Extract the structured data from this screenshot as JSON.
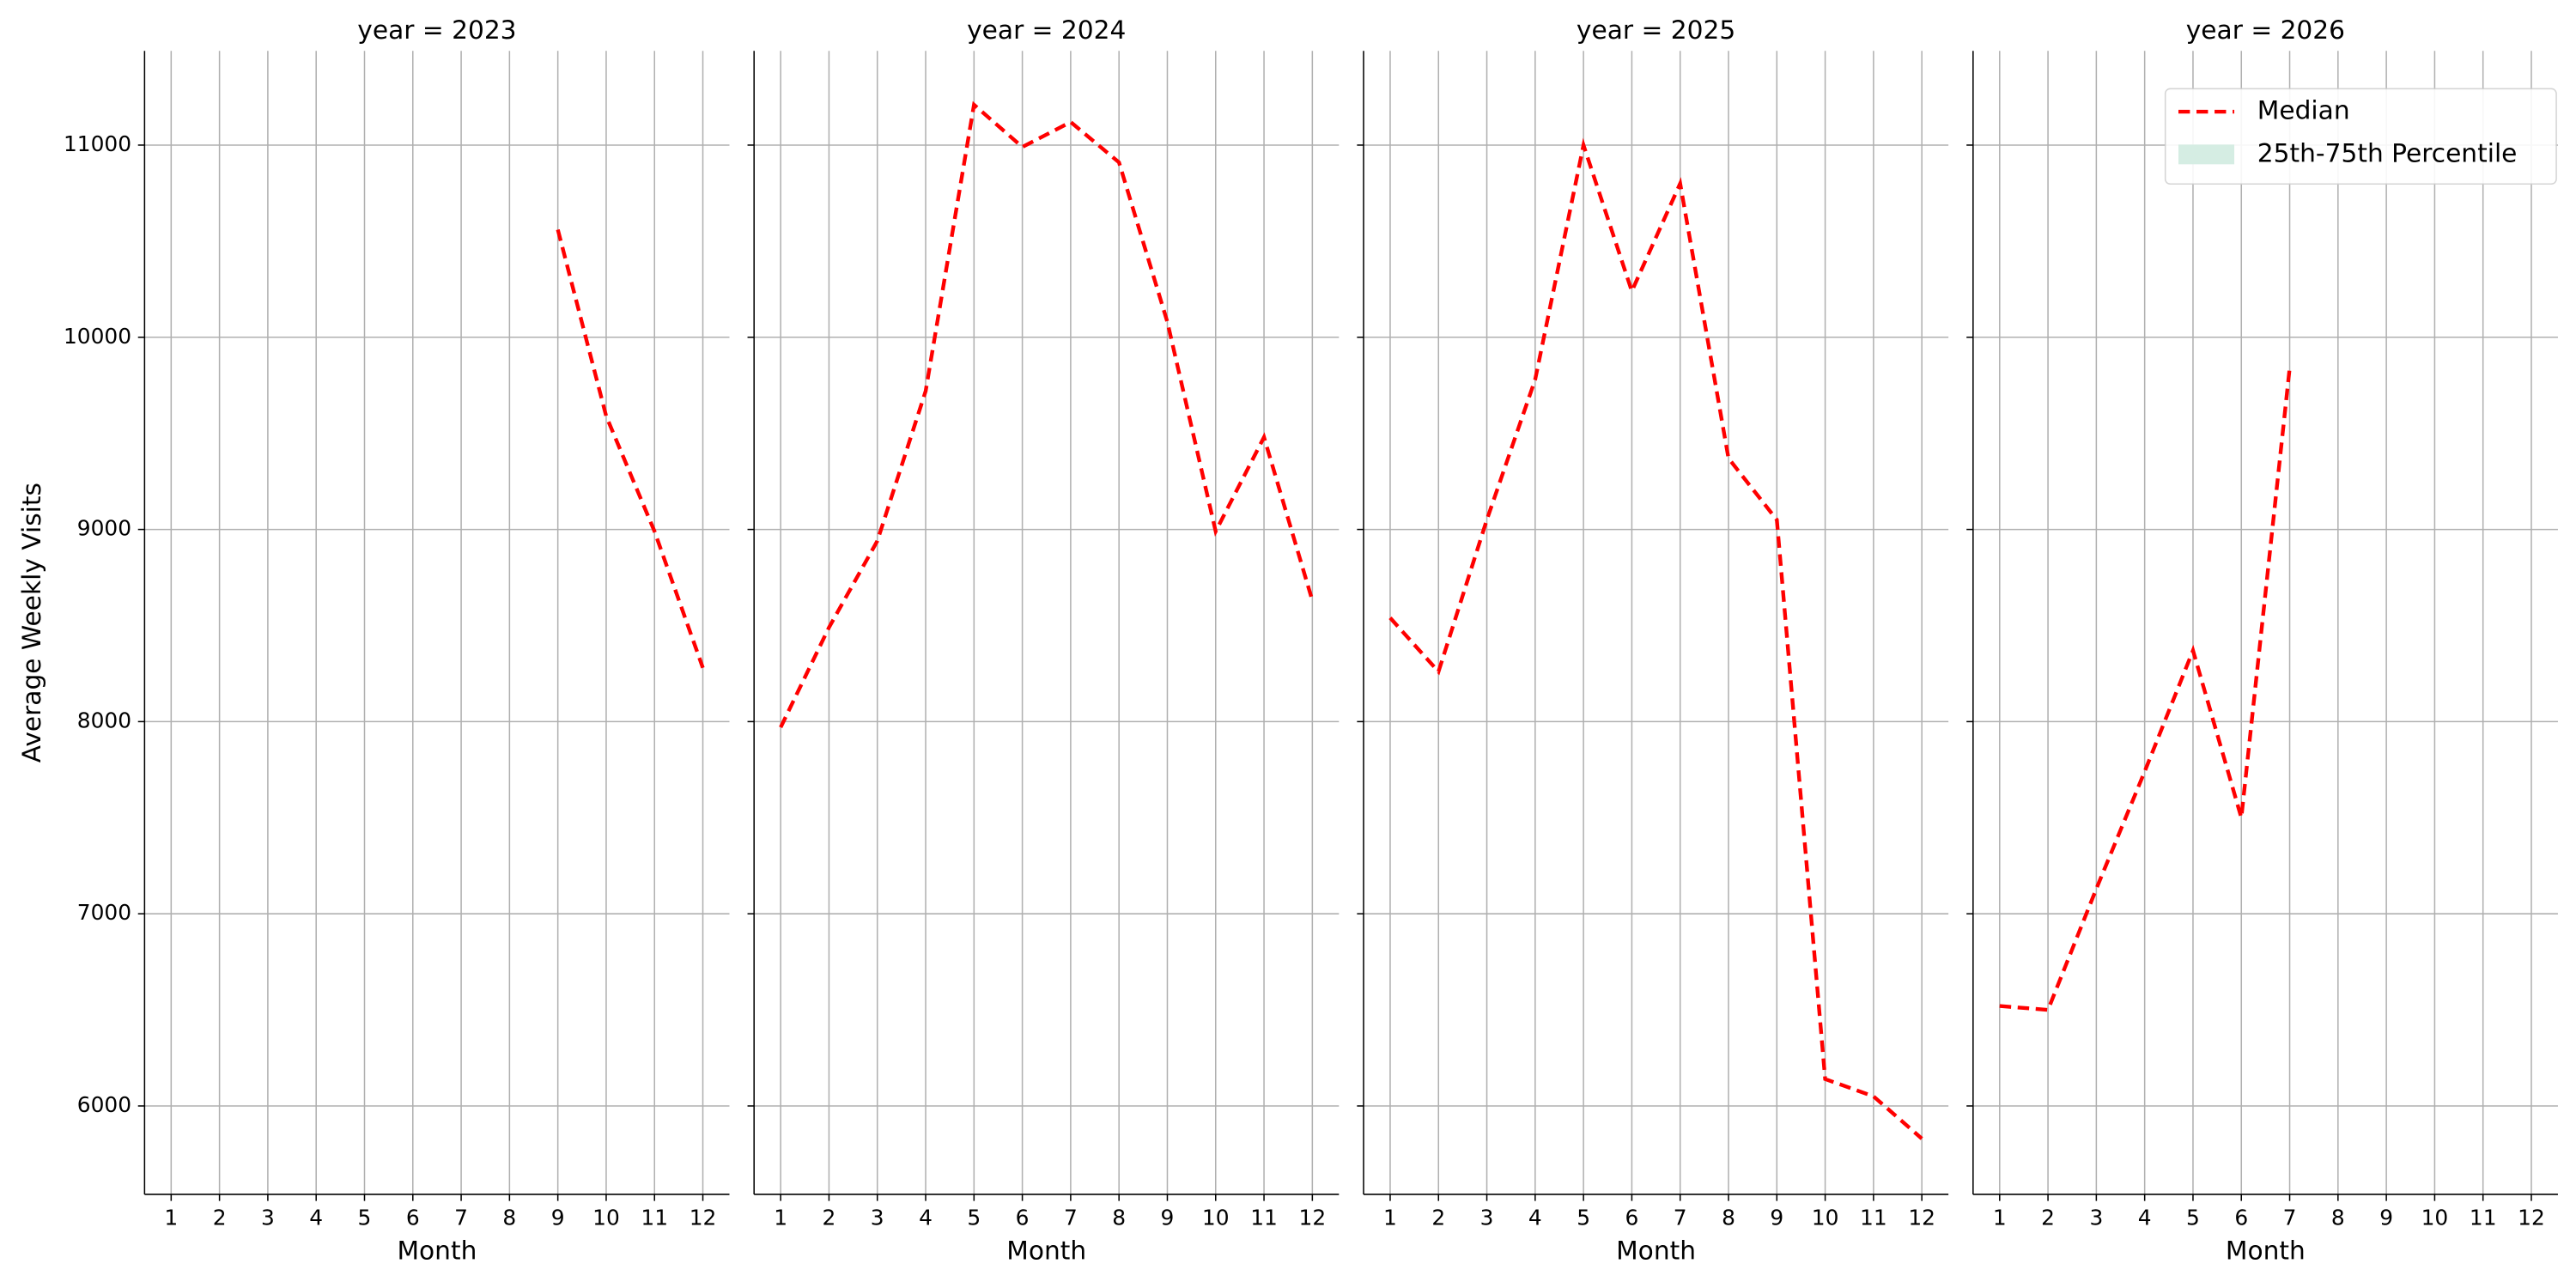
{
  "chart_data": [
    {
      "type": "line",
      "title": "year = 2023",
      "xlabel": "Month",
      "ylabel": "Average Weekly Visits",
      "x": [
        1,
        2,
        3,
        4,
        5,
        6,
        7,
        8,
        9,
        10,
        11,
        12
      ],
      "xlim": [
        0.45,
        12.55
      ],
      "xticks": [
        1,
        2,
        3,
        4,
        5,
        6,
        7,
        8,
        9,
        10,
        11,
        12
      ],
      "ylim": [
        5540,
        11490
      ],
      "yticks": [
        6000,
        7000,
        8000,
        9000,
        10000,
        11000
      ],
      "grid": true,
      "series": [
        {
          "color": "#ff0000",
          "style": "dashed",
          "values": [
            null,
            null,
            null,
            null,
            null,
            null,
            null,
            null,
            10560,
            9590,
            8990,
            8280
          ]
        }
      ]
    },
    {
      "type": "line",
      "title": "year = 2024",
      "xlabel": "Month",
      "sharey": true,
      "x": [
        1,
        2,
        3,
        4,
        5,
        6,
        7,
        8,
        9,
        10,
        11,
        12
      ],
      "xlim": [
        0.45,
        12.55
      ],
      "xticks": [
        1,
        2,
        3,
        4,
        5,
        6,
        7,
        8,
        9,
        10,
        11,
        12
      ],
      "grid": true,
      "series": [
        {
          "color": "#ff0000",
          "style": "dashed",
          "values": [
            7970,
            8490,
            8940,
            9720,
            11210,
            10990,
            11120,
            10910,
            10080,
            8990,
            9480,
            8630
          ]
        }
      ]
    },
    {
      "type": "line",
      "title": "year = 2025",
      "xlabel": "Month",
      "sharey": true,
      "x": [
        1,
        2,
        3,
        4,
        5,
        6,
        7,
        8,
        9,
        10,
        11,
        12
      ],
      "xlim": [
        0.45,
        12.55
      ],
      "xticks": [
        1,
        2,
        3,
        4,
        5,
        6,
        7,
        8,
        9,
        10,
        11,
        12
      ],
      "grid": true,
      "series": [
        {
          "color": "#ff0000",
          "style": "dashed",
          "values": [
            8540,
            8260,
            9050,
            9780,
            11000,
            10240,
            10800,
            9370,
            9050,
            6140,
            6050,
            5830
          ]
        }
      ]
    },
    {
      "type": "line",
      "title": "year = 2026",
      "xlabel": "Month",
      "sharey": true,
      "legend": "upper right",
      "x": [
        1,
        2,
        3,
        4,
        5,
        6,
        7,
        8,
        9,
        10,
        11,
        12
      ],
      "xlim": [
        0.45,
        12.55
      ],
      "xticks": [
        1,
        2,
        3,
        4,
        5,
        6,
        7,
        8,
        9,
        10,
        11,
        12
      ],
      "grid": true,
      "series": [
        {
          "name": "Median",
          "color": "#ff0000",
          "style": "dashed",
          "values": [
            6520,
            6500,
            7130,
            7740,
            8370,
            7500,
            9840,
            null,
            null,
            null,
            null,
            null
          ]
        },
        {
          "name": "25th-75th Percentile",
          "color": "#d5ede3",
          "style": "band",
          "values": [
            null,
            null,
            null,
            null,
            null,
            null,
            null,
            null,
            null,
            null,
            null,
            null
          ]
        }
      ]
    }
  ]
}
